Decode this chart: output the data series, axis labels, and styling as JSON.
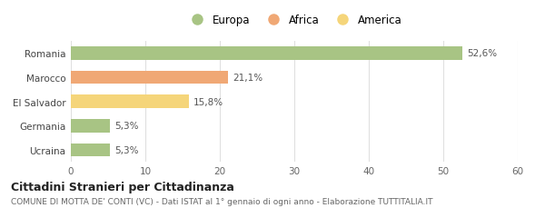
{
  "categories": [
    "Ucraina",
    "Germania",
    "El Salvador",
    "Marocco",
    "Romania"
  ],
  "values": [
    5.3,
    5.3,
    15.8,
    21.1,
    52.6
  ],
  "labels": [
    "5,3%",
    "5,3%",
    "15,8%",
    "21,1%",
    "52,6%"
  ],
  "colors": [
    "#a8c484",
    "#a8c484",
    "#f5d57a",
    "#f0a875",
    "#a8c484"
  ],
  "legend": [
    {
      "label": "Europa",
      "color": "#a8c484"
    },
    {
      "label": "Africa",
      "color": "#f0a875"
    },
    {
      "label": "America",
      "color": "#f5d57a"
    }
  ],
  "xlim": [
    0,
    60
  ],
  "xticks": [
    0,
    10,
    20,
    30,
    40,
    50,
    60
  ],
  "title": "Cittadini Stranieri per Cittadinanza",
  "subtitle": "COMUNE DI MOTTA DE' CONTI (VC) - Dati ISTAT al 1° gennaio di ogni anno - Elaborazione TUTTITALIA.IT",
  "background_color": "#ffffff",
  "grid_color": "#e0e0e0"
}
